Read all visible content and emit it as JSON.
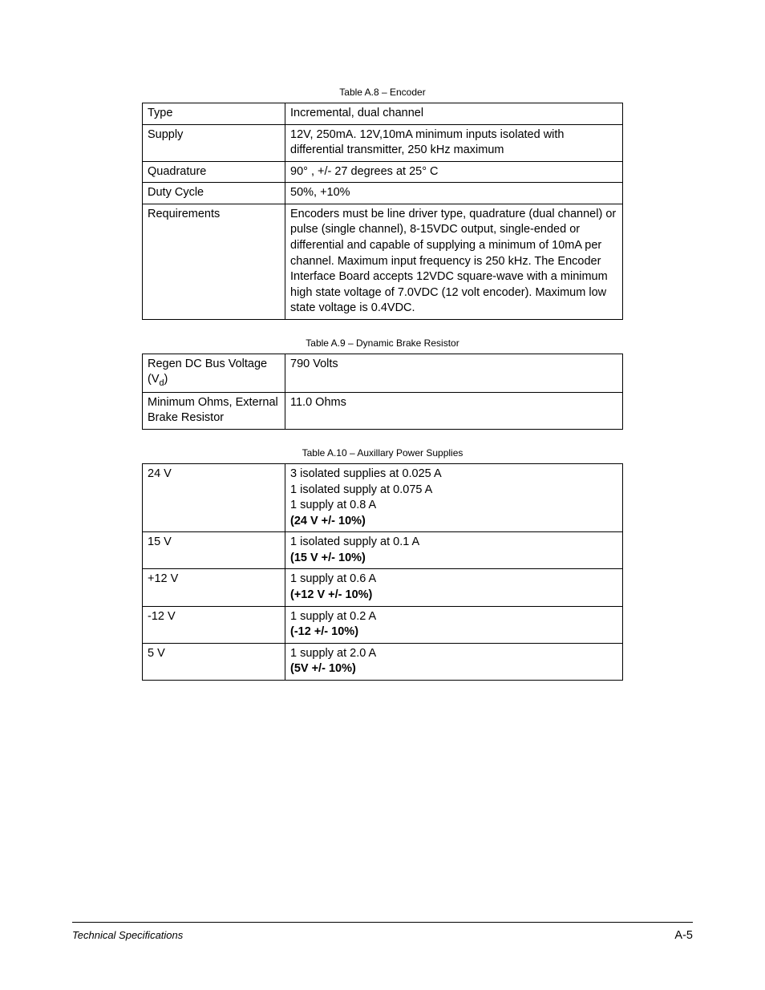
{
  "tables": [
    {
      "caption": "Table A.8 – Encoder",
      "rows": [
        {
          "label": "Type",
          "value": "Incremental, dual channel"
        },
        {
          "label": "Supply",
          "value": "12V, 250mA. 12V,10mA minimum inputs isolated with differential transmitter, 250 kHz maximum"
        },
        {
          "label": "Quadrature",
          "value": "90° , +/- 27 degrees at 25°  C"
        },
        {
          "label": "Duty Cycle",
          "value": "50%, +10%"
        },
        {
          "label": "Requirements",
          "value": "Encoders must be line driver type, quadrature (dual channel) or pulse (single channel), 8-15VDC output, single-ended or differential and capable of supplying a minimum of 10mA per channel. Maximum input frequency is 250 kHz. The Encoder Interface Board accepts 12VDC square-wave with a minimum high state voltage of 7.0VDC (12 volt encoder). Maximum low state voltage is 0.4VDC."
        }
      ]
    },
    {
      "caption": "Table A.9 – Dynamic Brake Resistor",
      "rows": [
        {
          "label_html": "Regen DC Bus Voltage (V<span class=\"sub\">d</span>)",
          "value": "790 Volts"
        },
        {
          "label": "Minimum Ohms, External Brake Resistor",
          "value": "11.0 Ohms"
        }
      ]
    },
    {
      "caption": "Table A.10 – Auxillary Power Supplies",
      "rows": [
        {
          "label": "24 V",
          "lines": [
            "3 isolated supplies at 0.025 A",
            "1 isolated supply at 0.075 A",
            "1 supply at 0.8 A"
          ],
          "bold_last": "(24 V +/- 10%)"
        },
        {
          "label": "15 V",
          "lines": [
            "1 isolated supply at 0.1 A"
          ],
          "bold_last": "(15 V +/- 10%)"
        },
        {
          "label": "+12 V",
          "lines": [
            "1 supply at 0.6 A"
          ],
          "bold_last": "(+12 V +/- 10%)"
        },
        {
          "label": "-12 V",
          "lines": [
            "1 supply at 0.2 A"
          ],
          "bold_last": "(-12 +/- 10%)"
        },
        {
          "label": "5 V",
          "lines": [
            "1 supply at 2.0 A"
          ],
          "bold_last": "(5V +/- 10%)"
        }
      ]
    }
  ],
  "footer": {
    "left": "Technical Specifications",
    "right": "A-5"
  }
}
